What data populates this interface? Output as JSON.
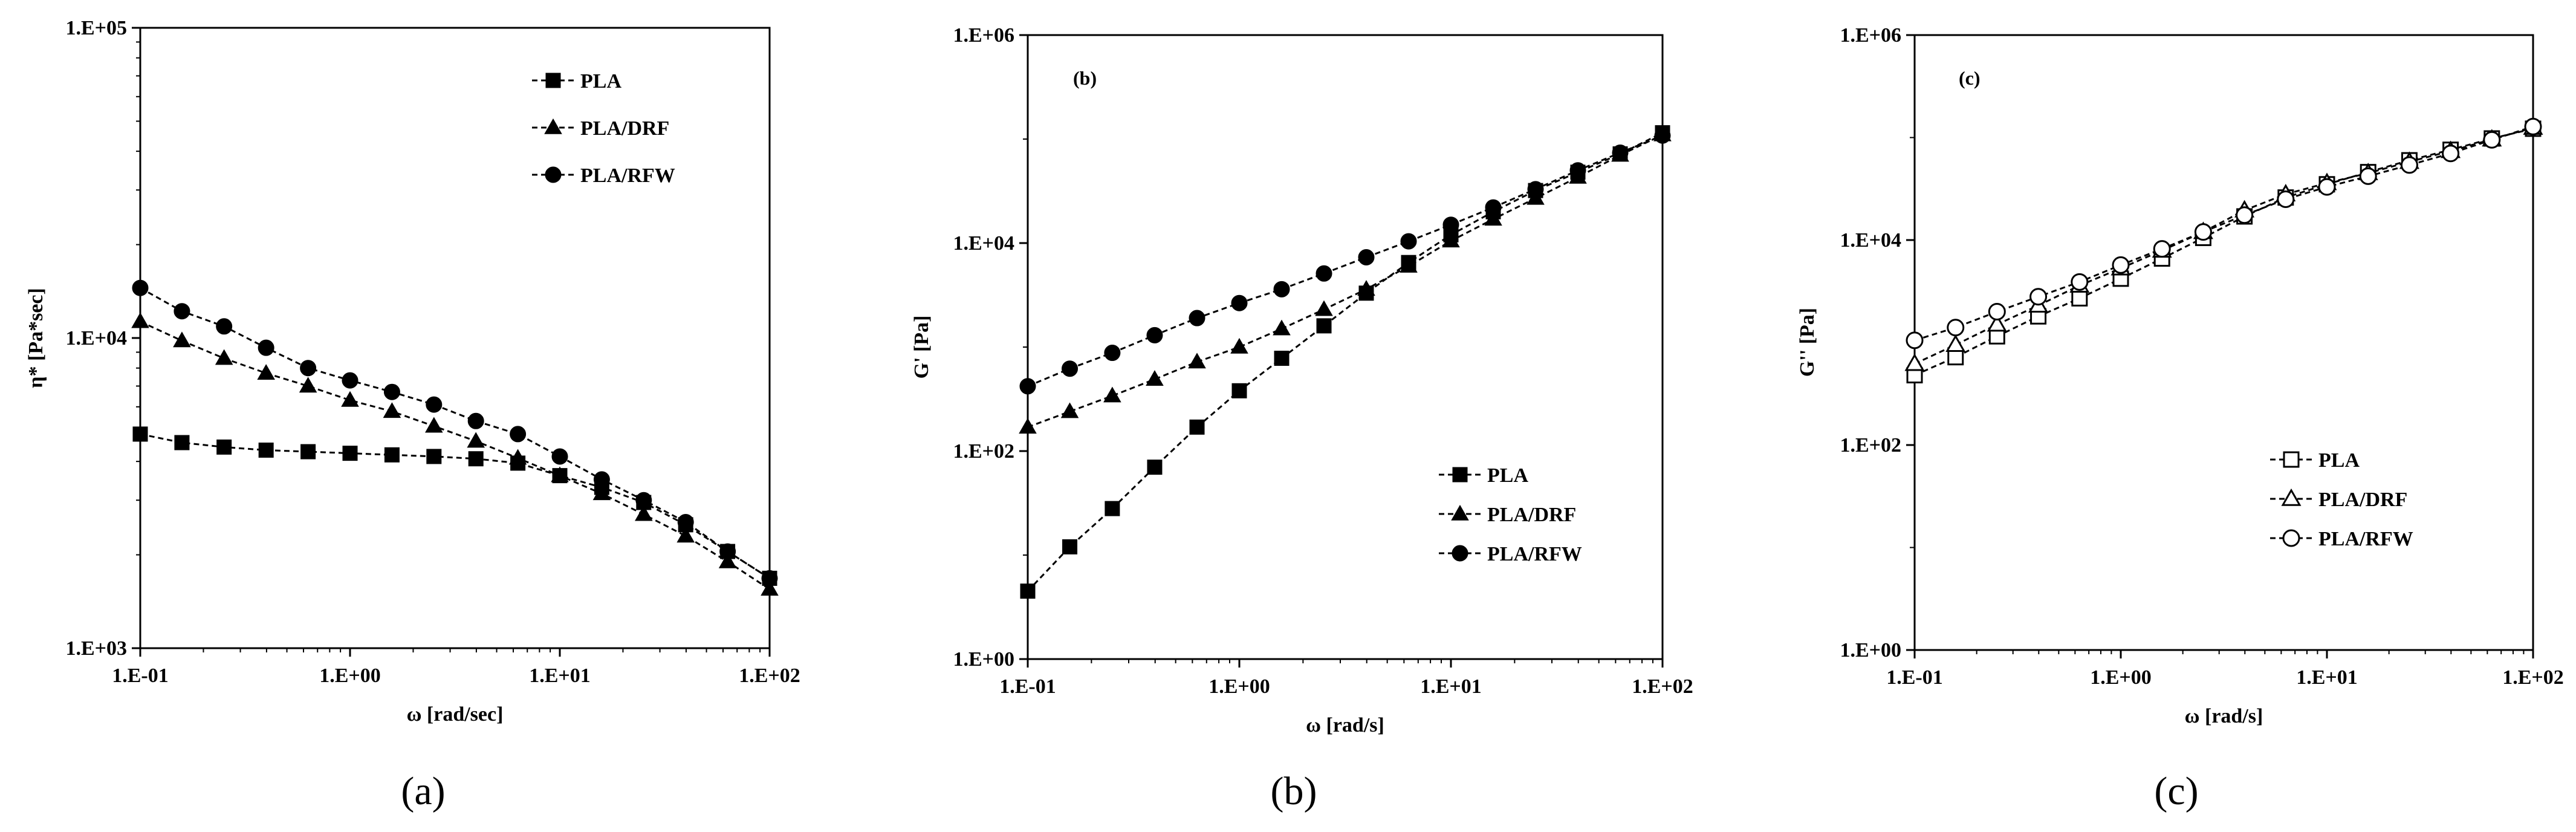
{
  "chart_data": [
    {
      "type": "line",
      "panel": "a",
      "caption": "(a)",
      "panel_label": "",
      "xlabel": "ω [rad/sec]",
      "ylabel": "η* [Pa*sec]",
      "xscale": "log",
      "yscale": "log",
      "xlim": [
        0.1,
        100
      ],
      "ylim": [
        1000,
        100000
      ],
      "xticks": [
        "1.E-01",
        "1.E+00",
        "1.E+01",
        "1.E+02"
      ],
      "yticks": [
        "1.E+03",
        "1.E+04",
        "1.E+05"
      ],
      "legend_position": "top-right",
      "x": [
        0.1,
        0.158,
        0.251,
        0.398,
        0.631,
        1.0,
        1.585,
        2.512,
        3.981,
        6.31,
        10.0,
        15.85,
        25.12,
        39.81,
        63.1,
        100.0
      ],
      "series": [
        {
          "name": "PLA",
          "marker": "filled-square",
          "values": [
            4900,
            4600,
            4450,
            4350,
            4300,
            4250,
            4200,
            4150,
            4080,
            3950,
            3600,
            3300,
            2950,
            2500,
            2050,
            1680
          ]
        },
        {
          "name": "PLA/DRF",
          "marker": "filled-triangle",
          "values": [
            11300,
            9800,
            8600,
            7700,
            7000,
            6300,
            5800,
            5200,
            4650,
            4100,
            3600,
            3150,
            2700,
            2300,
            1900,
            1550
          ]
        },
        {
          "name": "PLA/RFW",
          "marker": "filled-circle",
          "values": [
            14500,
            12200,
            10900,
            9300,
            8000,
            7300,
            6700,
            6100,
            5400,
            4900,
            4150,
            3500,
            3000,
            2550,
            2050,
            1680
          ]
        }
      ]
    },
    {
      "type": "line",
      "panel": "b",
      "caption": "(b)",
      "panel_label": "(b)",
      "xlabel": "ω [rad/s]",
      "ylabel": "G' [Pa]",
      "xscale": "log",
      "yscale": "log",
      "xlim": [
        0.1,
        100
      ],
      "ylim": [
        1,
        1000000
      ],
      "xticks": [
        "1.E-01",
        "1.E+00",
        "1.E+01",
        "1.E+02"
      ],
      "yticks": [
        "1.E+00",
        "1.E+02",
        "1.E+04",
        "1.E+06"
      ],
      "legend_position": "bottom-right",
      "x": [
        0.1,
        0.158,
        0.251,
        0.398,
        0.631,
        1.0,
        1.585,
        2.512,
        3.981,
        6.31,
        10.0,
        15.85,
        25.12,
        39.81,
        63.1,
        100.0
      ],
      "series": [
        {
          "name": "PLA",
          "marker": "filled-square",
          "values": [
            4.5,
            12,
            28,
            70,
            170,
            380,
            780,
            1600,
            3300,
            6500,
            12000,
            20000,
            32000,
            48000,
            72000,
            115000
          ]
        },
        {
          "name": "PLA/DRF",
          "marker": "filled-triangle",
          "values": [
            170,
            240,
            340,
            490,
            720,
            1000,
            1500,
            2300,
            3600,
            6000,
            10500,
            17000,
            27000,
            43000,
            70000,
            110000
          ]
        },
        {
          "name": "PLA/RFW",
          "marker": "filled-circle",
          "values": [
            420,
            620,
            880,
            1300,
            1900,
            2650,
            3600,
            5100,
            7300,
            10400,
            15000,
            22000,
            33000,
            50000,
            74000,
            108000
          ]
        }
      ]
    },
    {
      "type": "line",
      "panel": "c",
      "caption": "(c)",
      "panel_label": "(c)",
      "xlabel": "ω [rad/s]",
      "ylabel": "G'' [Pa]",
      "xscale": "log",
      "yscale": "log",
      "xlim": [
        0.1,
        100
      ],
      "ylim": [
        1,
        1000000
      ],
      "xticks": [
        "1.E-01",
        "1.E+00",
        "1.E+01",
        "1.E+02"
      ],
      "yticks": [
        "1.E+00",
        "1.E+02",
        "1.E+04",
        "1.E+06"
      ],
      "legend_position": "bottom-right",
      "x": [
        0.1,
        0.158,
        0.251,
        0.398,
        0.631,
        1.0,
        1.585,
        2.512,
        3.981,
        6.31,
        10.0,
        15.85,
        25.12,
        39.81,
        63.1,
        100.0
      ],
      "series": [
        {
          "name": "PLA",
          "marker": "open-square",
          "values": [
            480,
            720,
            1150,
            1800,
            2700,
            4200,
            6600,
            10500,
            17000,
            26000,
            35000,
            46000,
            60000,
            76000,
            98000,
            122000
          ]
        },
        {
          "name": "PLA/DRF",
          "marker": "open-triangle",
          "values": [
            620,
            950,
            1500,
            2300,
            3600,
            5300,
            7900,
            12000,
            19500,
            28000,
            36000,
            45000,
            58000,
            74000,
            96000,
            125000
          ]
        },
        {
          "name": "PLA/RFW",
          "marker": "open-circle",
          "values": [
            1050,
            1400,
            2000,
            2800,
            3900,
            5700,
            8200,
            12000,
            17500,
            25000,
            33000,
            42000,
            54000,
            70000,
            95000,
            128000
          ]
        }
      ]
    }
  ]
}
